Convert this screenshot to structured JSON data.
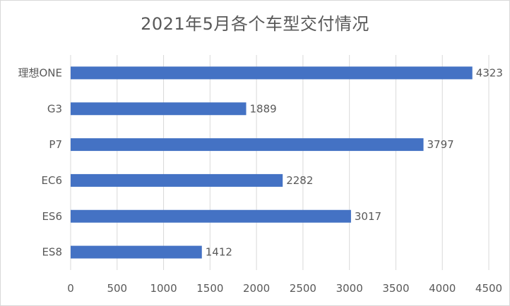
{
  "chart_data": {
    "type": "bar",
    "orientation": "horizontal",
    "title": "2021年5月各个车型交付情况",
    "categories": [
      "理想ONE",
      "G3",
      "P7",
      "EC6",
      "ES6",
      "ES8"
    ],
    "values": [
      4323,
      1889,
      3797,
      2282,
      3017,
      1412
    ],
    "xlim": [
      0,
      4500
    ],
    "xticks": [
      "0",
      "500",
      "1000",
      "1500",
      "2000",
      "2500",
      "3000",
      "3500",
      "4000",
      "4500"
    ],
    "grid": "vertical",
    "legend": "none",
    "data_labels": true,
    "colors": {
      "bar": "#4472C4",
      "grid": "#d9d9d9",
      "text": "#595959"
    }
  }
}
